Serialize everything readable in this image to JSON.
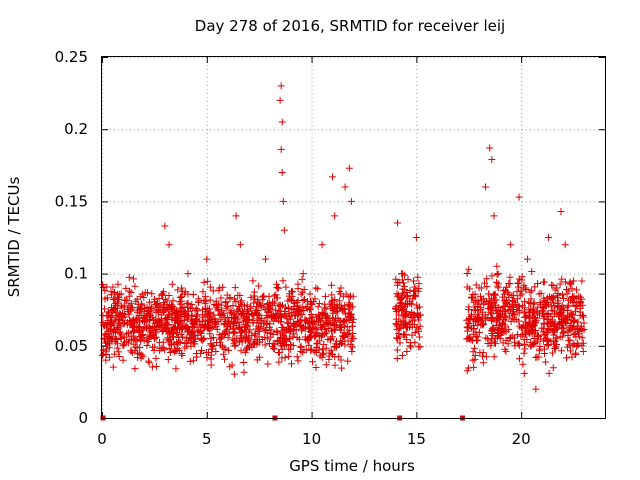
{
  "chart_data": {
    "type": "scatter",
    "title": "Day 278 of 2016, SRMTID for receiver leij",
    "xlabel": "GPS time / hours",
    "ylabel": "SRMTID / TECUs",
    "xlim": [
      0,
      24
    ],
    "ylim": [
      0,
      0.25
    ],
    "grid": true,
    "x_ticks": [
      0,
      5,
      10,
      15,
      20
    ],
    "x_tick_labels": [
      "0",
      "5",
      "10",
      "15",
      "20"
    ],
    "y_ticks": [
      0,
      0.05,
      0.1,
      0.15,
      0.2,
      0.25
    ],
    "y_tick_labels": [
      "0",
      "0.05",
      "0.1",
      "0.15",
      "0.2",
      "0.25"
    ],
    "marker": "+",
    "color": "#e00000",
    "zero_markers_x": [
      0.05,
      8.25,
      14.2,
      17.2
    ],
    "segments": [
      {
        "x_start": 0.0,
        "x_end": 12.0,
        "mean": 0.065,
        "spread": 0.022
      },
      {
        "x_start": 14.0,
        "x_end": 15.2,
        "mean": 0.075,
        "spread": 0.025
      },
      {
        "x_start": 17.4,
        "x_end": 23.0,
        "mean": 0.068,
        "spread": 0.025
      }
    ],
    "points": [
      [
        0.3,
        0.06
      ],
      [
        0.6,
        0.075
      ],
      [
        1.0,
        0.05
      ],
      [
        1.4,
        0.065
      ],
      [
        1.8,
        0.045
      ],
      [
        2.1,
        0.07
      ],
      [
        2.5,
        0.055
      ],
      [
        2.9,
        0.085
      ],
      [
        3.0,
        0.133
      ],
      [
        3.2,
        0.12
      ],
      [
        3.5,
        0.068
      ],
      [
        3.8,
        0.09
      ],
      [
        4.1,
        0.1
      ],
      [
        4.4,
        0.06
      ],
      [
        4.8,
        0.075
      ],
      [
        5.0,
        0.11
      ],
      [
        5.3,
        0.05
      ],
      [
        5.6,
        0.09
      ],
      [
        5.9,
        0.08
      ],
      [
        6.1,
        0.065
      ],
      [
        6.4,
        0.14
      ],
      [
        6.6,
        0.12
      ],
      [
        6.9,
        0.07
      ],
      [
        7.2,
        0.095
      ],
      [
        7.5,
        0.06
      ],
      [
        7.8,
        0.11
      ],
      [
        8.1,
        0.07
      ],
      [
        8.4,
        0.09
      ],
      [
        8.55,
        0.23
      ],
      [
        8.5,
        0.22
      ],
      [
        8.6,
        0.205
      ],
      [
        8.55,
        0.186
      ],
      [
        8.6,
        0.17
      ],
      [
        8.65,
        0.15
      ],
      [
        8.7,
        0.13
      ],
      [
        9.0,
        0.06
      ],
      [
        9.3,
        0.08
      ],
      [
        9.6,
        0.1
      ],
      [
        9.9,
        0.075
      ],
      [
        10.2,
        0.09
      ],
      [
        10.5,
        0.12
      ],
      [
        10.8,
        0.065
      ],
      [
        11.0,
        0.167
      ],
      [
        11.1,
        0.14
      ],
      [
        11.4,
        0.09
      ],
      [
        11.6,
        0.16
      ],
      [
        11.8,
        0.173
      ],
      [
        11.9,
        0.15
      ],
      [
        14.1,
        0.135
      ],
      [
        14.3,
        0.1
      ],
      [
        14.5,
        0.07
      ],
      [
        14.7,
        0.05
      ],
      [
        14.9,
        0.085
      ],
      [
        15.0,
        0.125
      ],
      [
        15.1,
        0.06
      ],
      [
        17.5,
        0.103
      ],
      [
        17.7,
        0.04
      ],
      [
        17.9,
        0.07
      ],
      [
        18.1,
        0.09
      ],
      [
        18.3,
        0.16
      ],
      [
        18.5,
        0.187
      ],
      [
        18.6,
        0.179
      ],
      [
        18.7,
        0.14
      ],
      [
        18.9,
        0.1
      ],
      [
        19.1,
        0.065
      ],
      [
        19.3,
        0.08
      ],
      [
        19.5,
        0.12
      ],
      [
        19.7,
        0.05
      ],
      [
        19.9,
        0.153
      ],
      [
        20.1,
        0.09
      ],
      [
        20.3,
        0.11
      ],
      [
        20.5,
        0.06
      ],
      [
        20.7,
        0.02
      ],
      [
        20.9,
        0.08
      ],
      [
        21.1,
        0.065
      ],
      [
        21.3,
        0.125
      ],
      [
        21.5,
        0.045
      ],
      [
        21.7,
        0.09
      ],
      [
        21.9,
        0.143
      ],
      [
        22.1,
        0.12
      ],
      [
        22.3,
        0.07
      ],
      [
        22.5,
        0.095
      ],
      [
        22.7,
        0.06
      ],
      [
        22.9,
        0.05
      ]
    ]
  }
}
